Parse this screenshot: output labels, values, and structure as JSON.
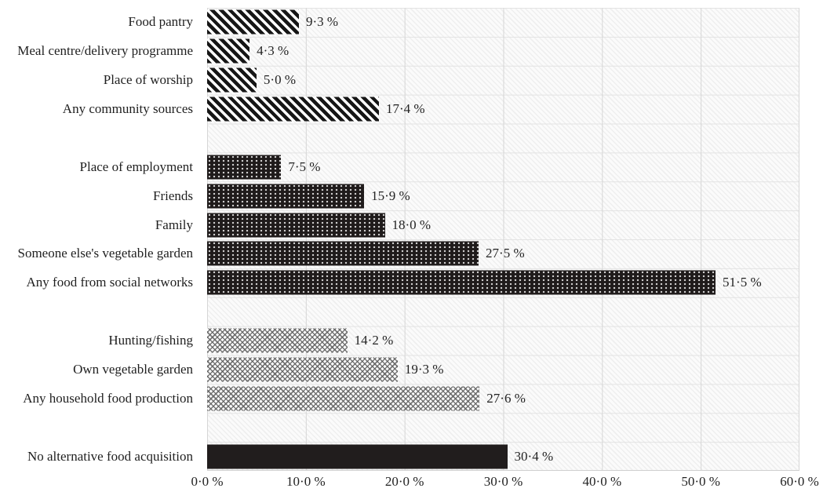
{
  "figure": {
    "background": "#ffffff",
    "text_color": "#1f1f1f",
    "gridline_vertical_color": "#d6d6d6",
    "gridline_horizontal_color": "#e3e3e3"
  },
  "chart_data": {
    "type": "bar",
    "orientation": "horizontal",
    "title": "",
    "xlabel": "",
    "ylabel": "",
    "xlim": [
      0,
      60
    ],
    "x_tick_step": 10,
    "grid": true,
    "legend_position": "none",
    "x_ticks": [
      {
        "value": 0,
        "label": "0·0 %"
      },
      {
        "value": 10,
        "label": "10·0 %"
      },
      {
        "value": 20,
        "label": "20·0 %"
      },
      {
        "value": 30,
        "label": "30·0 %"
      },
      {
        "value": 40,
        "label": "40·0 %"
      },
      {
        "value": 50,
        "label": "50·0 %"
      },
      {
        "value": 60,
        "label": "60·0 %"
      }
    ],
    "groups": {
      "community": {
        "pattern": "diagonal-stripes",
        "fg": "#161616",
        "bg": "#ffffff"
      },
      "social": {
        "pattern": "white-dots-on-dark",
        "fg": "#ffffff",
        "bg": "#1f1b1b"
      },
      "household": {
        "pattern": "herringbone-gray",
        "fg": "#606060",
        "bg": "#fcfcfc"
      },
      "none": {
        "pattern": "solid-black",
        "fg": "#211d1d",
        "bg": "#211d1d"
      }
    },
    "rows": [
      {
        "label": "Food pantry",
        "value": 9.3,
        "value_label": "9·3 %",
        "group": "community"
      },
      {
        "label": "Meal centre/delivery programme",
        "value": 4.3,
        "value_label": "4·3 %",
        "group": "community"
      },
      {
        "label": "Place of worship",
        "value": 5.0,
        "value_label": "5·0 %",
        "group": "community"
      },
      {
        "label": "Any community sources",
        "value": 17.4,
        "value_label": "17·4 %",
        "group": "community"
      },
      {
        "spacer": true
      },
      {
        "label": "Place of employment",
        "value": 7.5,
        "value_label": "7·5 %",
        "group": "social"
      },
      {
        "label": "Friends",
        "value": 15.9,
        "value_label": "15·9 %",
        "group": "social"
      },
      {
        "label": "Family",
        "value": 18.0,
        "value_label": "18·0 %",
        "group": "social"
      },
      {
        "label": "Someone else's vegetable garden",
        "value": 27.5,
        "value_label": "27·5 %",
        "group": "social"
      },
      {
        "label": "Any food from social networks",
        "value": 51.5,
        "value_label": "51·5 %",
        "group": "social"
      },
      {
        "spacer": true
      },
      {
        "label": "Hunting/fishing",
        "value": 14.2,
        "value_label": "14·2 %",
        "group": "household"
      },
      {
        "label": "Own vegetable garden",
        "value": 19.3,
        "value_label": "19·3 %",
        "group": "household"
      },
      {
        "label": "Any household food production",
        "value": 27.6,
        "value_label": "27·6 %",
        "group": "household"
      },
      {
        "spacer": true
      },
      {
        "label": "No alternative food acquisition",
        "value": 30.4,
        "value_label": "30·4 %",
        "group": "none"
      }
    ]
  }
}
